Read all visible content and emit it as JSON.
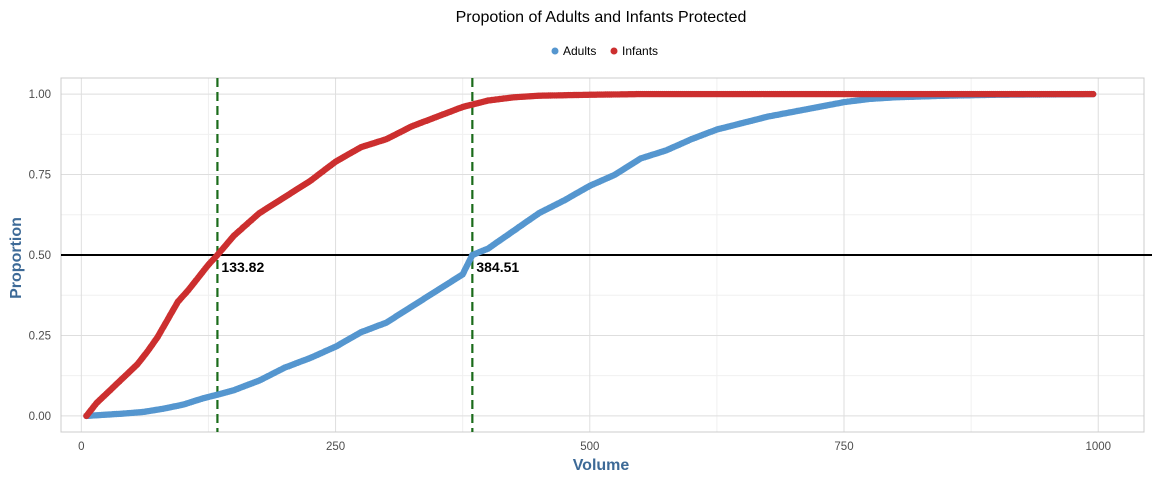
{
  "chart_data": {
    "type": "scatter",
    "title": "Propotion of Adults and Infants Protected",
    "xlabel": "Volume",
    "ylabel": "Proportion",
    "xlim": [
      -20,
      1045
    ],
    "ylim": [
      -0.05,
      1.05
    ],
    "x_ticks": [
      0,
      250,
      500,
      750,
      1000
    ],
    "x_tick_labels": [
      "0",
      "250",
      "500",
      "750",
      "1000"
    ],
    "y_ticks": [
      0,
      0.25,
      0.5,
      0.75,
      1.0
    ],
    "y_tick_labels": [
      "0.00",
      "0.25",
      "0.50",
      "0.75",
      "1.00"
    ],
    "grid": true,
    "legend_position": "top",
    "series": [
      {
        "name": "Adults",
        "color": "#5596cf",
        "points": [
          [
            5,
            0.0
          ],
          [
            20,
            0.003
          ],
          [
            40,
            0.007
          ],
          [
            60,
            0.012
          ],
          [
            80,
            0.022
          ],
          [
            100,
            0.035
          ],
          [
            120,
            0.055
          ],
          [
            133.82,
            0.066
          ],
          [
            150,
            0.08
          ],
          [
            175,
            0.11
          ],
          [
            200,
            0.15
          ],
          [
            225,
            0.18
          ],
          [
            250,
            0.215
          ],
          [
            275,
            0.26
          ],
          [
            300,
            0.29
          ],
          [
            325,
            0.34
          ],
          [
            350,
            0.39
          ],
          [
            375,
            0.44
          ],
          [
            384.51,
            0.5
          ],
          [
            400,
            0.52
          ],
          [
            425,
            0.575
          ],
          [
            450,
            0.63
          ],
          [
            475,
            0.67
          ],
          [
            500,
            0.715
          ],
          [
            525,
            0.75
          ],
          [
            550,
            0.8
          ],
          [
            575,
            0.825
          ],
          [
            600,
            0.86
          ],
          [
            625,
            0.89
          ],
          [
            650,
            0.91
          ],
          [
            675,
            0.93
          ],
          [
            700,
            0.945
          ],
          [
            725,
            0.96
          ],
          [
            750,
            0.975
          ],
          [
            775,
            0.985
          ],
          [
            800,
            0.99
          ],
          [
            850,
            0.995
          ],
          [
            900,
            0.998
          ],
          [
            950,
            0.999
          ],
          [
            995,
            1.0
          ]
        ]
      },
      {
        "name": "Infants",
        "color": "#cc2f2f",
        "points": [
          [
            5,
            0.0
          ],
          [
            15,
            0.04
          ],
          [
            25,
            0.07
          ],
          [
            35,
            0.1
          ],
          [
            45,
            0.13
          ],
          [
            55,
            0.16
          ],
          [
            65,
            0.2
          ],
          [
            75,
            0.245
          ],
          [
            85,
            0.3
          ],
          [
            95,
            0.355
          ],
          [
            105,
            0.39
          ],
          [
            115,
            0.43
          ],
          [
            125,
            0.47
          ],
          [
            133.82,
            0.5
          ],
          [
            150,
            0.56
          ],
          [
            175,
            0.63
          ],
          [
            200,
            0.68
          ],
          [
            225,
            0.73
          ],
          [
            250,
            0.79
          ],
          [
            275,
            0.835
          ],
          [
            300,
            0.86
          ],
          [
            325,
            0.9
          ],
          [
            350,
            0.93
          ],
          [
            375,
            0.96
          ],
          [
            400,
            0.98
          ],
          [
            425,
            0.99
          ],
          [
            450,
            0.995
          ],
          [
            500,
            0.998
          ],
          [
            550,
            1.0
          ],
          [
            700,
            1.0
          ],
          [
            850,
            1.0
          ],
          [
            995,
            1.0
          ]
        ]
      }
    ],
    "hline": {
      "y": 0.5,
      "color": "#000000"
    },
    "vlines": [
      {
        "x": 133.82,
        "label": "133.82",
        "color": "#1a6b1a"
      },
      {
        "x": 384.51,
        "label": "384.51",
        "color": "#1a6b1a"
      }
    ]
  }
}
